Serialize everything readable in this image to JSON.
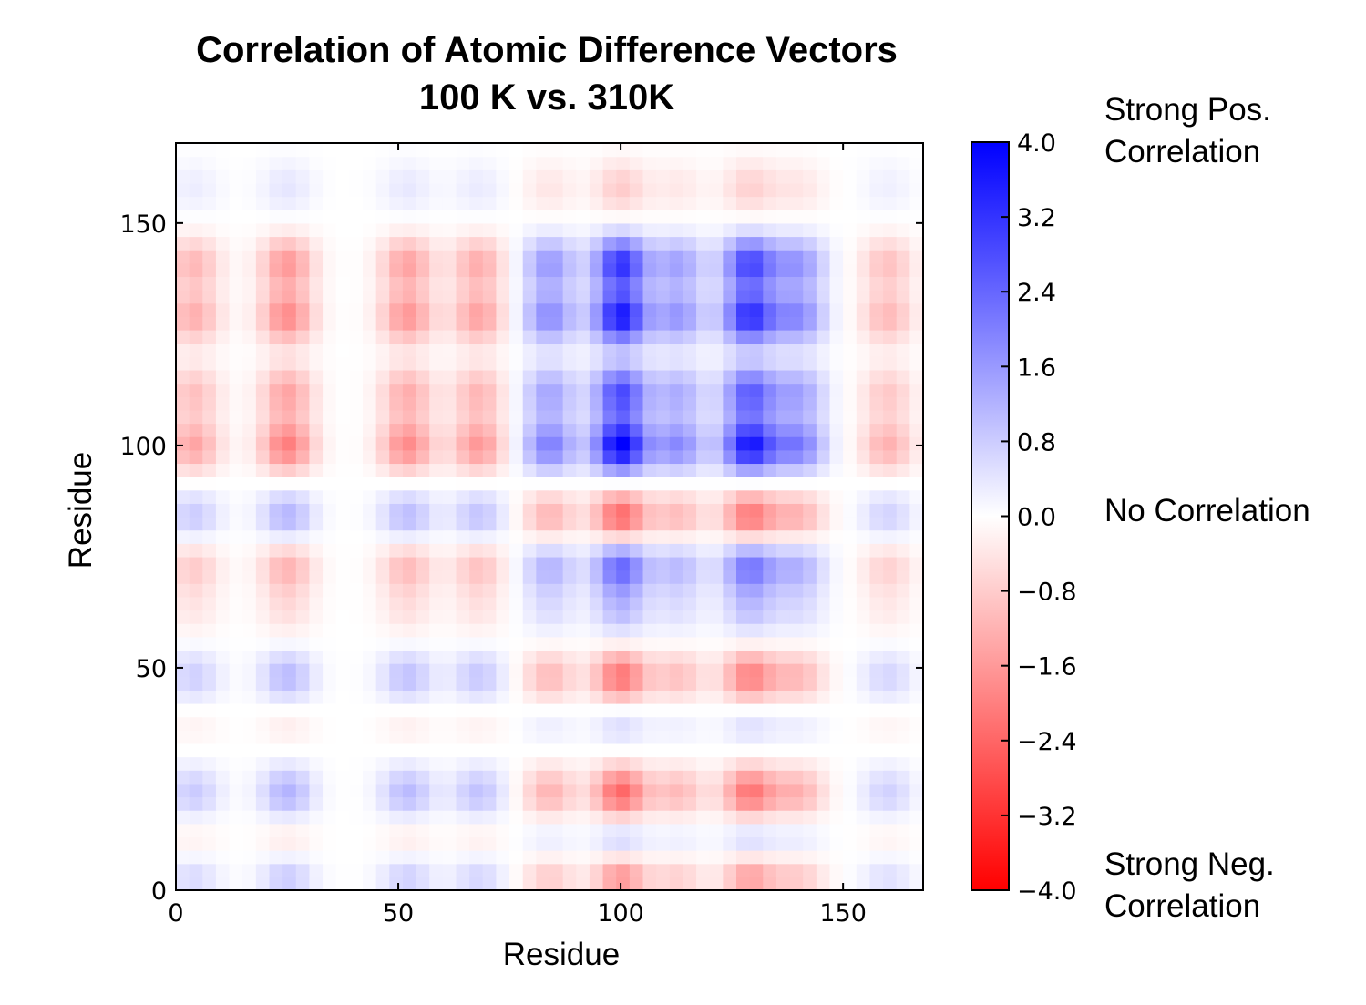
{
  "chart_data": {
    "type": "heatmap",
    "title": "Correlation of Atomic Difference Vectors",
    "subtitle": "100 K vs. 310K",
    "xlabel": "Residue",
    "ylabel": "Residue",
    "x_range": [
      0,
      168
    ],
    "y_range": [
      0,
      168
    ],
    "xticks": [
      0,
      50,
      100,
      150
    ],
    "yticks": [
      0,
      50,
      100,
      150
    ],
    "colorbar": {
      "range": [
        -4.0,
        4.0
      ],
      "ticks": [
        "4.0",
        "3.2",
        "2.4",
        "1.6",
        "0.8",
        "0.0",
        "−0.8",
        "−1.6",
        "−2.4",
        "−3.2",
        "−4.0"
      ],
      "colors": {
        "max": "#0000ff",
        "mid": "#ffffff",
        "min": "#ff0000"
      }
    },
    "annotations": {
      "positive": [
        "Strong Pos.",
        "Correlation"
      ],
      "zero": "No Correlation",
      "negative": [
        "Strong Neg.",
        "Correlation"
      ]
    },
    "row_profile": [
      {
        "residue": 4,
        "value": 0.5
      },
      {
        "residue": 10,
        "value": -0.3
      },
      {
        "residue": 22,
        "value": 0.6
      },
      {
        "residue": 38,
        "value": -0.15
      },
      {
        "residue": 48,
        "value": 0.55
      },
      {
        "residue": 63,
        "value": -0.25
      },
      {
        "residue": 73,
        "value": -0.6
      },
      {
        "residue": 84,
        "value": 0.6
      },
      {
        "residue": 100,
        "value": -1.0
      },
      {
        "residue": 112,
        "value": -0.7
      },
      {
        "residue": 129,
        "value": -0.9
      },
      {
        "residue": 141,
        "value": -0.8
      },
      {
        "residue": 158,
        "value": 0.2
      }
    ],
    "column_profile": [
      {
        "residue": 4,
        "value": 0.35
      },
      {
        "residue": 25,
        "value": 0.5
      },
      {
        "residue": 52,
        "value": 0.45
      },
      {
        "residue": 68,
        "value": 0.4
      },
      {
        "residue": 84,
        "value": -0.5
      },
      {
        "residue": 100,
        "value": -1.0
      },
      {
        "residue": 113,
        "value": -0.45
      },
      {
        "residue": 129,
        "value": -0.9
      },
      {
        "residue": 140,
        "value": -0.5
      },
      {
        "residue": 160,
        "value": 0.3
      }
    ]
  }
}
